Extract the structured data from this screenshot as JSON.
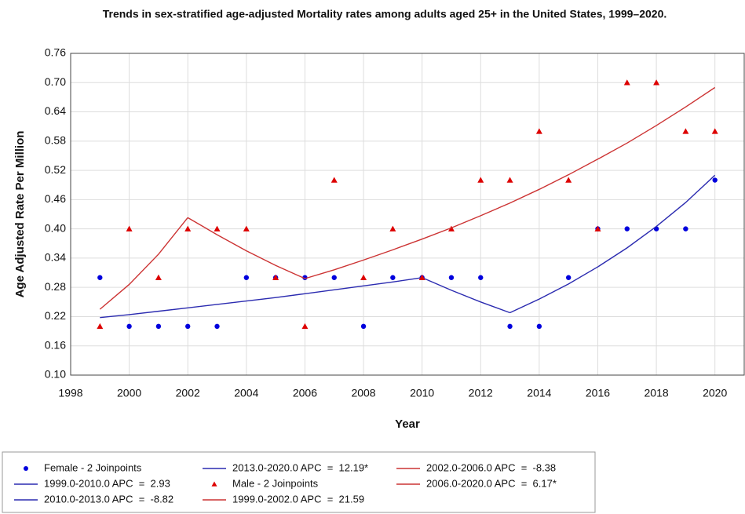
{
  "chart_data": {
    "type": "line",
    "title": "Trends in sex-stratified age-adjusted Mortality rates among adults aged 25+ in the United States, 1999–2020.",
    "x_label": "Year",
    "y_label": "Age Adjusted Rate Per Million",
    "xlim": [
      1998,
      2021
    ],
    "xticks": [
      1998,
      2000,
      2002,
      2004,
      2006,
      2008,
      2010,
      2012,
      2014,
      2016,
      2018,
      2020
    ],
    "ylim": [
      0.1,
      0.76
    ],
    "yticks": [
      {
        "value": 0.1,
        "label": "0.10"
      },
      0.16,
      0.22,
      0.28,
      0.34,
      {
        "value": 0.4,
        "label": "0.40"
      },
      0.46,
      0.52,
      0.58,
      0.64,
      {
        "value": 0.7,
        "label": "0.70"
      },
      0.76
    ],
    "grid": true,
    "series": [
      {
        "name": "Female - 2 Joinpoints",
        "kind": "points",
        "marker": "circle",
        "color": "#0000dd",
        "x": [
          1999,
          2000,
          2001,
          2002,
          2003,
          2004,
          2005,
          2006,
          2007,
          2008,
          2009,
          2010,
          2011,
          2012,
          2013,
          2014,
          2015,
          2016,
          2017,
          2018,
          2019,
          2020
        ],
        "values": [
          0.3,
          0.2,
          0.2,
          0.2,
          0.2,
          0.3,
          0.3,
          0.3,
          0.3,
          0.2,
          0.3,
          0.3,
          0.3,
          0.3,
          0.2,
          0.2,
          0.3,
          0.4,
          0.4,
          0.4,
          0.4,
          0.5
        ]
      },
      {
        "name": "1999.0-2010.0 APC  =  2.93",
        "kind": "line",
        "color": "#2b2bb0",
        "x": [
          1999,
          2000,
          2001,
          2002,
          2003,
          2004,
          2005,
          2006,
          2007,
          2008,
          2009,
          2010
        ],
        "values": [
          0.218,
          0.224,
          0.231,
          0.238,
          0.245,
          0.252,
          0.259,
          0.267,
          0.275,
          0.283,
          0.291,
          0.3
        ]
      },
      {
        "name": "2010.0-2013.0 APC  =  -8.82",
        "kind": "line",
        "color": "#2b2bb0",
        "x": [
          2010,
          2011,
          2012,
          2013
        ],
        "values": [
          0.3,
          0.274,
          0.25,
          0.228
        ]
      },
      {
        "name": "2013.0-2020.0 APC  =  12.19*",
        "kind": "line",
        "color": "#2b2bb0",
        "x": [
          2013,
          2014,
          2015,
          2016,
          2017,
          2018,
          2019,
          2020
        ],
        "values": [
          0.228,
          0.256,
          0.287,
          0.322,
          0.361,
          0.405,
          0.454,
          0.51
        ]
      },
      {
        "name": "Male - 2 Joinpoints",
        "kind": "points",
        "marker": "triangle",
        "color": "#dd0000",
        "x": [
          1999,
          2000,
          2001,
          2002,
          2003,
          2004,
          2005,
          2006,
          2007,
          2008,
          2009,
          2010,
          2011,
          2012,
          2013,
          2014,
          2015,
          2016,
          2017,
          2018,
          2019,
          2020
        ],
        "values": [
          0.2,
          0.4,
          0.3,
          0.4,
          0.4,
          0.4,
          0.3,
          0.2,
          0.5,
          0.3,
          0.4,
          0.3,
          0.4,
          0.5,
          0.5,
          0.6,
          0.5,
          0.4,
          0.7,
          0.7,
          0.6,
          0.6
        ]
      },
      {
        "name": "1999.0-2002.0 APC  =  21.59",
        "kind": "line",
        "color": "#cc3333",
        "x": [
          1999,
          2000,
          2001,
          2002
        ],
        "values": [
          0.235,
          0.286,
          0.348,
          0.423
        ]
      },
      {
        "name": "2002.0-2006.0 APC  =  -8.38",
        "kind": "line",
        "color": "#cc3333",
        "x": [
          2002,
          2003,
          2004,
          2005,
          2006
        ],
        "values": [
          0.423,
          0.388,
          0.355,
          0.325,
          0.298
        ]
      },
      {
        "name": "2006.0-2020.0 APC  =  6.17*",
        "kind": "line",
        "color": "#cc3333",
        "x": [
          2006,
          2007,
          2008,
          2009,
          2010,
          2011,
          2012,
          2013,
          2014,
          2015,
          2016,
          2017,
          2018,
          2019,
          2020
        ],
        "values": [
          0.298,
          0.316,
          0.336,
          0.357,
          0.379,
          0.402,
          0.427,
          0.453,
          0.481,
          0.511,
          0.543,
          0.576,
          0.612,
          0.65,
          0.69
        ]
      }
    ]
  }
}
